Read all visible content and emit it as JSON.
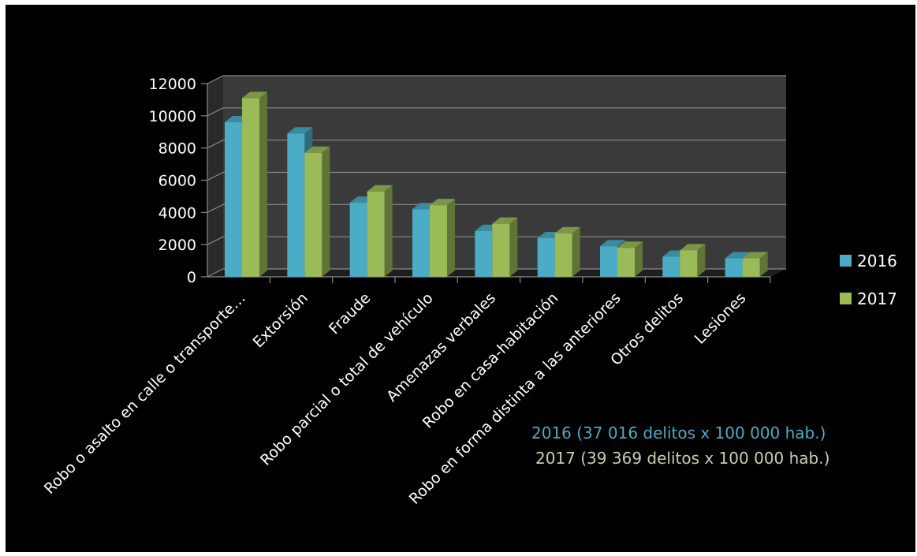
{
  "colors": {
    "background": "#000000",
    "plot_wall": "#3a3a3a",
    "grid": "#8a8a8a",
    "axis_text": "#ffffff",
    "series_2016": "#4bacc6",
    "series_2017": "#9bbb59"
  },
  "chart_data": {
    "type": "bar",
    "style": "3d-clustered-column",
    "categories": [
      "Robo o asalto en calle o transporte…",
      "Extorsión",
      "Fraude",
      "Robo parcial o total de vehículo",
      "Amenazas verbales",
      "Robo en casa-habitación",
      "Robo en forma distinta a las anteriores",
      "Otros delitos",
      "Lesiones"
    ],
    "series": [
      {
        "name": "2016",
        "color": "#4bacc6",
        "values": [
          9600,
          8900,
          4600,
          4200,
          2850,
          2400,
          1900,
          1250,
          1150
        ]
      },
      {
        "name": "2017",
        "color": "#9bbb59",
        "values": [
          11100,
          7700,
          5300,
          4450,
          3300,
          2700,
          1800,
          1650,
          1150
        ]
      }
    ],
    "ylim": [
      0,
      12000
    ],
    "yticks": [
      "0",
      "2000",
      "4000",
      "6000",
      "8000",
      "10000",
      "12000"
    ],
    "grid": true,
    "legend_position": "right",
    "annotations": [
      {
        "text": "2016 (37 016 delitos x 100 000 hab.)",
        "color": "#4bacc6"
      },
      {
        "text": "2017 (39 369 delitos x 100 000 hab.)",
        "color": "#c7cfb0"
      }
    ]
  }
}
